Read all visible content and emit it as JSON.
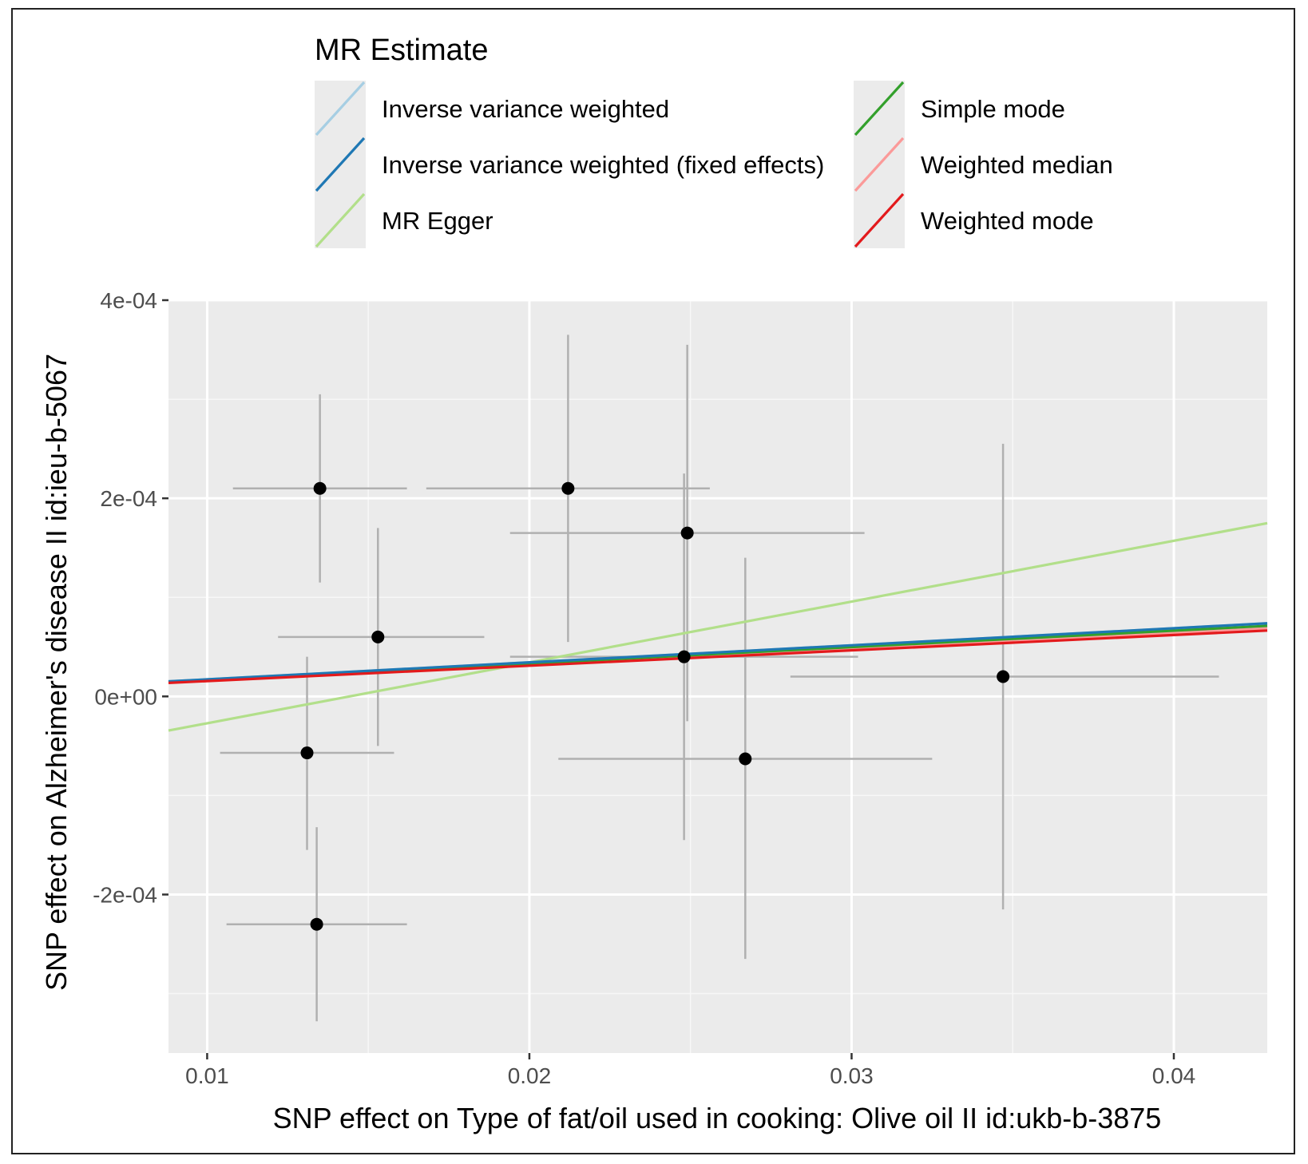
{
  "chart_data": {
    "type": "scatter",
    "title": "",
    "xlabel": "SNP effect on Type of fat/oil used in cooking: Olive oil II id:ukb-b-3875",
    "ylabel": "SNP effect on Alzheimer's disease II id:ieu-b-5067",
    "xlim": [
      0.0088,
      0.0429
    ],
    "ylim": [
      -0.00036,
      0.0004
    ],
    "x_ticks": [
      0.01,
      0.02,
      0.03,
      0.04
    ],
    "x_tick_labels": [
      "0.01",
      "0.02",
      "0.03",
      "0.04"
    ],
    "y_ticks": [
      -0.0002,
      0.0,
      0.0002,
      0.0004
    ],
    "y_tick_labels": [
      "-2e-04",
      "0e+00",
      "2e-04",
      "4e-04"
    ],
    "grid": true,
    "legend": {
      "title": "MR Estimate",
      "position": "top",
      "entries": [
        {
          "label": "Inverse variance weighted",
          "color": "#a6cee3"
        },
        {
          "label": "Inverse variance weighted (fixed effects)",
          "color": "#1f78b4"
        },
        {
          "label": "MR Egger",
          "color": "#b2df8a"
        },
        {
          "label": "Simple mode",
          "color": "#33a02c"
        },
        {
          "label": "Weighted median",
          "color": "#fb9a99"
        },
        {
          "label": "Weighted mode",
          "color": "#e31a1c"
        }
      ]
    },
    "points": [
      {
        "x": 0.0135,
        "y": 0.00021,
        "xlo": 0.0108,
        "xhi": 0.0162,
        "ylo": 0.000115,
        "yhi": 0.000305
      },
      {
        "x": 0.0153,
        "y": 6e-05,
        "xlo": 0.0122,
        "xhi": 0.0186,
        "ylo": -5e-05,
        "yhi": 0.00017
      },
      {
        "x": 0.0131,
        "y": -5.7e-05,
        "xlo": 0.0104,
        "xhi": 0.0158,
        "ylo": -0.000155,
        "yhi": 4e-05
      },
      {
        "x": 0.0134,
        "y": -0.00023,
        "xlo": 0.0106,
        "xhi": 0.0162,
        "ylo": -0.000328,
        "yhi": -0.000132
      },
      {
        "x": 0.0212,
        "y": 0.00021,
        "xlo": 0.0168,
        "xhi": 0.0256,
        "ylo": 5.5e-05,
        "yhi": 0.000365
      },
      {
        "x": 0.0249,
        "y": 0.000165,
        "xlo": 0.0194,
        "xhi": 0.0304,
        "ylo": -2.5e-05,
        "yhi": 0.000355
      },
      {
        "x": 0.0248,
        "y": 4e-05,
        "xlo": 0.0194,
        "xhi": 0.0302,
        "ylo": -0.000145,
        "yhi": 0.000225
      },
      {
        "x": 0.0267,
        "y": -6.3e-05,
        "xlo": 0.0209,
        "xhi": 0.0325,
        "ylo": -0.000265,
        "yhi": 0.00014
      },
      {
        "x": 0.0347,
        "y": 2e-05,
        "xlo": 0.0281,
        "xhi": 0.0414,
        "ylo": -0.000215,
        "yhi": 0.000255
      }
    ],
    "lines": [
      {
        "name": "Inverse variance weighted",
        "color": "#a6cee3",
        "intercept": 0.0,
        "slope": 0.00172
      },
      {
        "name": "Inverse variance weighted (fixed effects)",
        "color": "#1f78b4",
        "intercept": 0.0,
        "slope": 0.00172
      },
      {
        "name": "MR Egger",
        "color": "#b2df8a",
        "intercept": -8.85e-05,
        "slope": 0.00614
      },
      {
        "name": "Simple mode",
        "color": "#33a02c",
        "intercept": 0.0,
        "slope": 0.00166
      },
      {
        "name": "Weighted median",
        "color": "#fb9a99",
        "intercept": 0.0,
        "slope": 0.0016
      },
      {
        "name": "Weighted mode",
        "color": "#e31a1c",
        "intercept": 0.0,
        "slope": 0.00155
      }
    ]
  }
}
